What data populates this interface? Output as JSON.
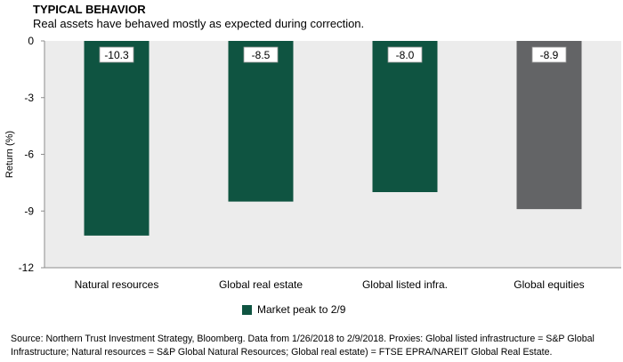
{
  "title": "TYPICAL BEHAVIOR",
  "subtitle": "Real assets have behaved mostly as expected during correction.",
  "colors": {
    "primary": "#0f5441",
    "equities": "#636466",
    "grid": "#d9d9d9"
  },
  "chart_data": {
    "type": "bar",
    "categories": [
      "Natural resources",
      "Global real estate",
      "Global listed infra.",
      "Global equities"
    ],
    "series": [
      {
        "name": "Market peak to 2/9",
        "values": [
          -10.3,
          -8.5,
          -8.0,
          -8.9
        ],
        "labels": [
          "-10.3",
          "-8.5",
          "-8.0",
          "-8.9"
        ]
      }
    ],
    "ylabel": "Return (%)",
    "ylim": [
      -12,
      0
    ],
    "yticks": [
      0,
      -3,
      -6,
      -9,
      -12
    ],
    "grid": false,
    "legend_position": "bottom"
  },
  "source": "Source: Northern Trust Investment Strategy, Bloomberg. Data from 1/26/2018  to 2/9/2018.  Proxies: Global listed infrastructure = S&P Global Infrastructure; Natural resources = S&P Global Natural Resources; Global real estate) = FTSE EPRA/NAREIT Global Real Estate."
}
